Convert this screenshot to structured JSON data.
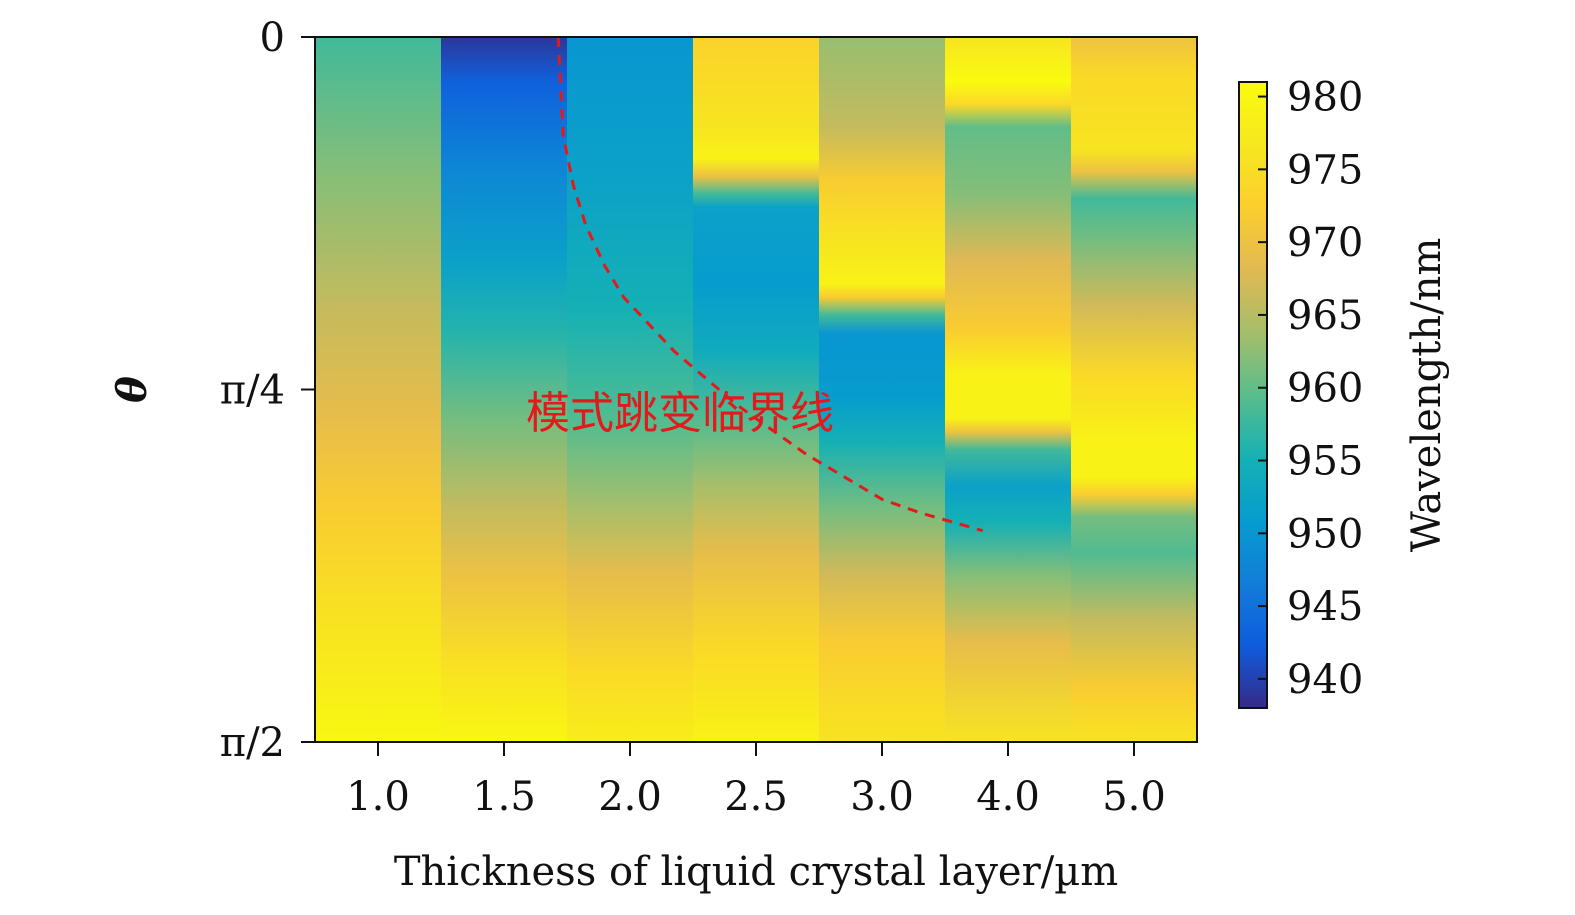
{
  "chart_data": {
    "type": "heatmap",
    "xlabel": "Thickness of liquid crystal layer/µm",
    "ylabel": "θ",
    "x_categories": [
      "1.0",
      "1.5",
      "2.0",
      "2.5",
      "3.0",
      "4.0",
      "5.0"
    ],
    "y_axis": {
      "min": 0,
      "max": 1.5708,
      "inverted": true,
      "ticks": [
        {
          "value": 0,
          "label": "0"
        },
        {
          "value": 0.7854,
          "label": "π/4"
        },
        {
          "value": 1.5708,
          "label": "π/2"
        }
      ]
    },
    "colorbar": {
      "label": "Wavelength/nm",
      "min": 938,
      "max": 981,
      "ticks": [
        940,
        945,
        950,
        955,
        960,
        965,
        970,
        975,
        980
      ]
    },
    "columns": [
      {
        "x": "1.0",
        "profile": [
          [
            0,
            958
          ],
          [
            0.3,
            962
          ],
          [
            0.6,
            966
          ],
          [
            0.85,
            969
          ],
          [
            1.05,
            972
          ],
          [
            1.25,
            975
          ],
          [
            1.5708,
            980
          ]
        ]
      },
      {
        "x": "1.5",
        "profile": [
          [
            0,
            939
          ],
          [
            0.1,
            943
          ],
          [
            0.3,
            948
          ],
          [
            0.5,
            952
          ],
          [
            0.65,
            956
          ],
          [
            0.85,
            961
          ],
          [
            1.05,
            966
          ],
          [
            1.2,
            970
          ],
          [
            1.38,
            975
          ],
          [
            1.5708,
            980
          ]
        ]
      },
      {
        "x": "2.0",
        "profile": [
          [
            0,
            950
          ],
          [
            0.3,
            952
          ],
          [
            0.6,
            955
          ],
          [
            0.85,
            959
          ],
          [
            1.05,
            964
          ],
          [
            1.2,
            969
          ],
          [
            1.4,
            974
          ],
          [
            1.5708,
            978
          ]
        ]
      },
      {
        "x": "2.5",
        "profile": [
          [
            0,
            973
          ],
          [
            0.2,
            976
          ],
          [
            0.27,
            979
          ],
          [
            0.31,
            970
          ],
          [
            0.35,
            958
          ],
          [
            0.38,
            952
          ],
          [
            0.55,
            951
          ],
          [
            0.7,
            954
          ],
          [
            0.85,
            959
          ],
          [
            1.0,
            964
          ],
          [
            1.15,
            969
          ],
          [
            1.35,
            974
          ],
          [
            1.5708,
            979
          ]
        ]
      },
      {
        "x": "3.0",
        "profile": [
          [
            0,
            963
          ],
          [
            0.2,
            966
          ],
          [
            0.32,
            972
          ],
          [
            0.45,
            976
          ],
          [
            0.55,
            979
          ],
          [
            0.58,
            972
          ],
          [
            0.62,
            958
          ],
          [
            0.66,
            950
          ],
          [
            0.8,
            951
          ],
          [
            0.9,
            955
          ],
          [
            1.05,
            961
          ],
          [
            1.2,
            967
          ],
          [
            1.35,
            972
          ],
          [
            1.5708,
            976
          ]
        ]
      },
      {
        "x": "4.0",
        "profile": [
          [
            0,
            976
          ],
          [
            0.1,
            981
          ],
          [
            0.15,
            974
          ],
          [
            0.2,
            960
          ],
          [
            0.35,
            962
          ],
          [
            0.5,
            968
          ],
          [
            0.65,
            972
          ],
          [
            0.75,
            979
          ],
          [
            0.85,
            979
          ],
          [
            0.88,
            970
          ],
          [
            0.92,
            958
          ],
          [
            1.0,
            952
          ],
          [
            1.08,
            955
          ],
          [
            1.2,
            962
          ],
          [
            1.35,
            969
          ],
          [
            1.5708,
            976
          ]
        ]
      },
      {
        "x": "5.0",
        "profile": [
          [
            0,
            970
          ],
          [
            0.08,
            974
          ],
          [
            0.25,
            976
          ],
          [
            0.3,
            970
          ],
          [
            0.36,
            958
          ],
          [
            0.45,
            961
          ],
          [
            0.6,
            967
          ],
          [
            0.75,
            974
          ],
          [
            0.9,
            979
          ],
          [
            0.98,
            979
          ],
          [
            1.02,
            972
          ],
          [
            1.07,
            961
          ],
          [
            1.15,
            959
          ],
          [
            1.3,
            966
          ],
          [
            1.45,
            972
          ],
          [
            1.5708,
            976
          ]
        ]
      }
    ],
    "annotation": {
      "text": "模式跳变临界线",
      "color": "#e31a1c"
    },
    "critical_line": {
      "style": "dashed",
      "color": "#e31a1c",
      "points": [
        [
          1.43,
          0
        ],
        [
          1.47,
          0.22
        ],
        [
          1.55,
          0.33
        ],
        [
          1.65,
          0.42
        ],
        [
          1.8,
          0.51
        ],
        [
          1.95,
          0.58
        ],
        [
          2.15,
          0.64
        ],
        [
          2.35,
          0.7
        ],
        [
          2.6,
          0.76
        ],
        [
          2.85,
          0.82
        ],
        [
          3.1,
          0.87
        ],
        [
          3.4,
          0.93
        ],
        [
          3.7,
          0.98
        ],
        [
          4.0,
          1.03
        ],
        [
          4.3,
          1.06
        ],
        [
          4.55,
          1.08
        ],
        [
          4.8,
          1.1
        ]
      ]
    }
  }
}
